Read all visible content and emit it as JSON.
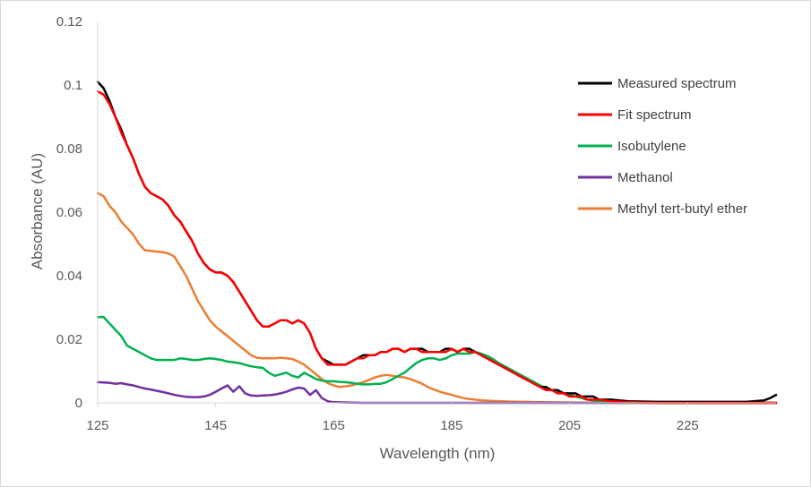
{
  "chart_data": {
    "type": "line",
    "title": "",
    "xlabel": "Wavelength (nm)",
    "ylabel": "Absorbance (AU)",
    "xlim": [
      125,
      240
    ],
    "ylim": [
      0,
      0.12
    ],
    "x_ticks": [
      125,
      145,
      165,
      185,
      205,
      225
    ],
    "x_tick_labels": [
      "125",
      "145",
      "165",
      "185",
      "205",
      "225"
    ],
    "y_ticks": [
      0,
      0.02,
      0.04,
      0.06,
      0.08,
      0.1,
      0.12
    ],
    "y_tick_labels": [
      "0",
      "0.02",
      "0.04",
      "0.06",
      "0.08",
      "0.1",
      "0.12"
    ],
    "grid": false,
    "legend_position": "right",
    "series": [
      {
        "name": "Measured spectrum",
        "color": "#000000",
        "x": [
          125,
          126,
          127,
          128,
          129,
          130,
          131,
          132,
          133,
          134,
          135,
          136,
          137,
          138,
          139,
          140,
          141,
          142,
          143,
          144,
          145,
          146,
          147,
          148,
          149,
          150,
          151,
          152,
          153,
          154,
          155,
          156,
          157,
          158,
          159,
          160,
          161,
          162,
          163,
          164,
          165,
          166,
          167,
          168,
          169,
          170,
          171,
          172,
          173,
          174,
          175,
          176,
          177,
          178,
          179,
          180,
          181,
          182,
          183,
          184,
          185,
          186,
          187,
          188,
          189,
          190,
          191,
          192,
          193,
          194,
          195,
          196,
          197,
          198,
          199,
          200,
          201,
          202,
          203,
          204,
          205,
          206,
          207,
          208,
          209,
          210,
          212,
          215,
          220,
          225,
          230,
          235,
          238,
          239,
          240
        ],
        "y": [
          0.101,
          0.099,
          0.095,
          0.09,
          0.086,
          0.081,
          0.077,
          0.072,
          0.068,
          0.066,
          0.065,
          0.064,
          0.062,
          0.059,
          0.057,
          0.054,
          0.051,
          0.047,
          0.044,
          0.042,
          0.041,
          0.041,
          0.04,
          0.038,
          0.035,
          0.032,
          0.029,
          0.026,
          0.024,
          0.024,
          0.025,
          0.026,
          0.026,
          0.025,
          0.026,
          0.025,
          0.022,
          0.017,
          0.014,
          0.013,
          0.012,
          0.012,
          0.012,
          0.013,
          0.014,
          0.015,
          0.015,
          0.015,
          0.016,
          0.016,
          0.017,
          0.017,
          0.016,
          0.017,
          0.017,
          0.017,
          0.016,
          0.016,
          0.016,
          0.017,
          0.017,
          0.016,
          0.017,
          0.017,
          0.016,
          0.015,
          0.014,
          0.013,
          0.012,
          0.011,
          0.01,
          0.009,
          0.008,
          0.007,
          0.006,
          0.005,
          0.005,
          0.004,
          0.004,
          0.003,
          0.003,
          0.003,
          0.002,
          0.002,
          0.002,
          0.001,
          0.001,
          0.0005,
          0.0003,
          0.0003,
          0.0003,
          0.0003,
          0.0008,
          0.0015,
          0.0025
        ]
      },
      {
        "name": "Fit spectrum",
        "color": "#ff0000",
        "x": [
          125,
          126,
          127,
          128,
          129,
          130,
          131,
          132,
          133,
          134,
          135,
          136,
          137,
          138,
          139,
          140,
          141,
          142,
          143,
          144,
          145,
          146,
          147,
          148,
          149,
          150,
          151,
          152,
          153,
          154,
          155,
          156,
          157,
          158,
          159,
          160,
          161,
          162,
          163,
          164,
          165,
          166,
          167,
          168,
          169,
          170,
          171,
          172,
          173,
          174,
          175,
          176,
          177,
          178,
          179,
          180,
          181,
          182,
          183,
          184,
          185,
          186,
          187,
          188,
          189,
          190,
          191,
          192,
          193,
          194,
          195,
          196,
          197,
          198,
          199,
          200,
          201,
          202,
          203,
          204,
          205,
          206,
          207,
          208,
          209,
          210,
          212,
          215,
          220,
          225,
          230,
          235,
          240
        ],
        "y": [
          0.098,
          0.097,
          0.094,
          0.09,
          0.085,
          0.081,
          0.077,
          0.072,
          0.068,
          0.066,
          0.065,
          0.064,
          0.062,
          0.059,
          0.057,
          0.054,
          0.051,
          0.047,
          0.044,
          0.042,
          0.041,
          0.041,
          0.04,
          0.038,
          0.035,
          0.032,
          0.029,
          0.026,
          0.024,
          0.024,
          0.025,
          0.026,
          0.026,
          0.025,
          0.026,
          0.025,
          0.022,
          0.017,
          0.014,
          0.012,
          0.012,
          0.012,
          0.012,
          0.013,
          0.014,
          0.014,
          0.015,
          0.015,
          0.016,
          0.016,
          0.017,
          0.017,
          0.016,
          0.017,
          0.017,
          0.016,
          0.016,
          0.016,
          0.016,
          0.016,
          0.017,
          0.016,
          0.017,
          0.016,
          0.016,
          0.015,
          0.014,
          0.013,
          0.012,
          0.011,
          0.01,
          0.009,
          0.008,
          0.007,
          0.006,
          0.005,
          0.004,
          0.004,
          0.003,
          0.003,
          0.002,
          0.002,
          0.002,
          0.001,
          0.001,
          0.001,
          0.0005,
          0.0002,
          0.0,
          0.0,
          0.0,
          0.0,
          0.0
        ]
      },
      {
        "name": "Isobutylene",
        "color": "#00b050",
        "x": [
          125,
          126,
          127,
          128,
          129,
          130,
          131,
          132,
          133,
          134,
          135,
          136,
          137,
          138,
          139,
          140,
          141,
          142,
          143,
          144,
          145,
          146,
          147,
          148,
          149,
          150,
          151,
          152,
          153,
          154,
          155,
          156,
          157,
          158,
          159,
          160,
          161,
          162,
          163,
          164,
          165,
          166,
          167,
          168,
          169,
          170,
          171,
          172,
          173,
          174,
          175,
          176,
          177,
          178,
          179,
          180,
          181,
          182,
          183,
          184,
          185,
          186,
          187,
          188,
          189,
          190,
          191,
          192,
          193,
          194,
          195,
          196,
          197,
          198,
          199,
          200,
          201,
          202,
          203,
          204,
          205,
          206,
          207,
          208,
          209,
          210,
          212,
          215,
          220,
          225,
          230,
          235,
          240
        ],
        "y": [
          0.027,
          0.027,
          0.025,
          0.023,
          0.021,
          0.018,
          0.017,
          0.016,
          0.015,
          0.014,
          0.0135,
          0.0135,
          0.0135,
          0.0135,
          0.014,
          0.0138,
          0.0135,
          0.0135,
          0.0138,
          0.014,
          0.0138,
          0.0135,
          0.013,
          0.0128,
          0.0125,
          0.012,
          0.0115,
          0.0112,
          0.011,
          0.0095,
          0.0085,
          0.009,
          0.0095,
          0.0085,
          0.008,
          0.0095,
          0.0085,
          0.0075,
          0.007,
          0.0068,
          0.0068,
          0.0066,
          0.0065,
          0.0063,
          0.006,
          0.0058,
          0.0058,
          0.006,
          0.006,
          0.0065,
          0.0075,
          0.0085,
          0.0095,
          0.011,
          0.0125,
          0.0135,
          0.014,
          0.014,
          0.0135,
          0.014,
          0.015,
          0.0155,
          0.0155,
          0.0155,
          0.016,
          0.0155,
          0.0148,
          0.0138,
          0.0125,
          0.0115,
          0.0105,
          0.0095,
          0.0085,
          0.0075,
          0.0065,
          0.0055,
          0.0045,
          0.004,
          0.0035,
          0.003,
          0.0025,
          0.002,
          0.0015,
          0.001,
          0.0008,
          0.0005,
          0.0003,
          0.0001,
          0.0,
          0.0,
          0.0,
          0.0,
          0.0
        ]
      },
      {
        "name": "Methanol",
        "color": "#7030a0",
        "x": [
          125,
          126,
          127,
          128,
          129,
          130,
          131,
          132,
          133,
          134,
          135,
          136,
          137,
          138,
          139,
          140,
          141,
          142,
          143,
          144,
          145,
          146,
          147,
          148,
          149,
          150,
          151,
          152,
          153,
          154,
          155,
          156,
          157,
          158,
          159,
          160,
          161,
          162,
          163,
          164,
          165,
          170,
          175,
          180,
          185,
          190,
          195,
          200,
          210,
          220,
          230,
          240
        ],
        "y": [
          0.0065,
          0.0064,
          0.0063,
          0.006,
          0.0062,
          0.0058,
          0.0055,
          0.005,
          0.0045,
          0.0042,
          0.0038,
          0.0034,
          0.003,
          0.0025,
          0.0022,
          0.0019,
          0.0018,
          0.0018,
          0.002,
          0.0025,
          0.0035,
          0.0045,
          0.0055,
          0.0035,
          0.0052,
          0.003,
          0.0023,
          0.0022,
          0.0023,
          0.0024,
          0.0026,
          0.003,
          0.0035,
          0.0042,
          0.0048,
          0.0045,
          0.0025,
          0.004,
          0.0015,
          0.0005,
          0.0002,
          0.0,
          0.0,
          0.0,
          0.0,
          0.0,
          0.0,
          0.0,
          0.0,
          0.0,
          0.0,
          0.0
        ]
      },
      {
        "name": "Methyl tert-butyl ether",
        "color": "#ed7d31",
        "x": [
          125,
          126,
          127,
          128,
          129,
          130,
          131,
          132,
          133,
          134,
          135,
          136,
          137,
          138,
          139,
          140,
          141,
          142,
          143,
          144,
          145,
          146,
          147,
          148,
          149,
          150,
          151,
          152,
          153,
          154,
          155,
          156,
          157,
          158,
          159,
          160,
          161,
          162,
          163,
          164,
          165,
          166,
          167,
          168,
          169,
          170,
          171,
          172,
          173,
          174,
          175,
          176,
          177,
          178,
          179,
          180,
          181,
          182,
          183,
          184,
          185,
          186,
          187,
          188,
          189,
          190,
          192,
          195,
          200,
          205,
          210,
          220,
          230,
          240
        ],
        "y": [
          0.066,
          0.065,
          0.062,
          0.06,
          0.057,
          0.055,
          0.053,
          0.05,
          0.048,
          0.0478,
          0.0476,
          0.0474,
          0.047,
          0.046,
          0.043,
          0.04,
          0.036,
          0.032,
          0.029,
          0.026,
          0.024,
          0.0225,
          0.021,
          0.0195,
          0.018,
          0.0165,
          0.015,
          0.0142,
          0.014,
          0.014,
          0.014,
          0.0142,
          0.014,
          0.0138,
          0.013,
          0.012,
          0.0105,
          0.009,
          0.0075,
          0.0062,
          0.0055,
          0.005,
          0.0052,
          0.0055,
          0.006,
          0.0065,
          0.0072,
          0.008,
          0.0085,
          0.0088,
          0.0085,
          0.0082,
          0.008,
          0.0075,
          0.0068,
          0.006,
          0.005,
          0.0042,
          0.0035,
          0.003,
          0.0025,
          0.002,
          0.0015,
          0.0012,
          0.001,
          0.0008,
          0.0006,
          0.0004,
          0.0002,
          0.0001,
          0.0,
          0.0,
          0.0,
          0.0
        ]
      }
    ]
  }
}
